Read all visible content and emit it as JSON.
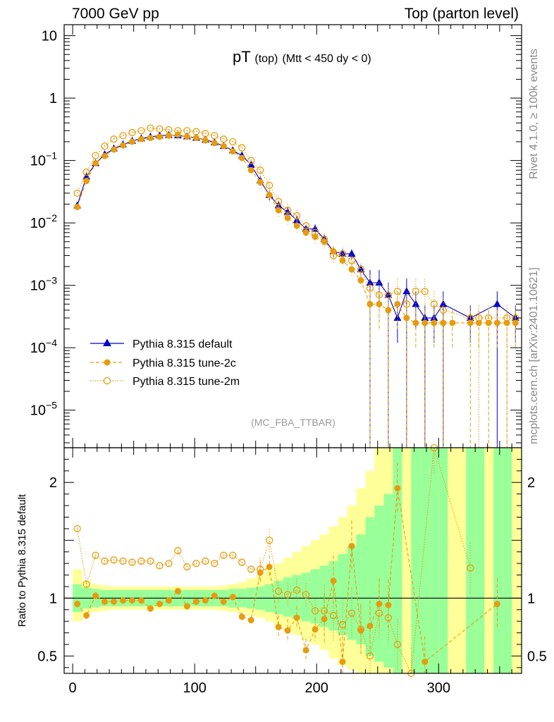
{
  "header": {
    "left": "7000 GeV pp",
    "right": "Top (parton level)"
  },
  "side": {
    "rivet": "Rivet 4.1.0, ≥ 100k events",
    "mcplots": "mcplots.cern.ch [arXiv:2401.10621]"
  },
  "chart_data": [
    {
      "type": "line",
      "panel": "main",
      "title": "pT",
      "title_sub": "(top)",
      "title_cond": "(Mtt < 450 dy < 0)",
      "watermark": "(MC_FBA_TTBAR)",
      "yscale": "log",
      "ylim": [
        2.5e-06,
        15
      ],
      "xlim": [
        -7,
        368
      ],
      "y_tick_labels": [
        {
          "value": 10,
          "base": "10",
          "exp": ""
        },
        {
          "value": 1,
          "base": "1",
          "exp": ""
        },
        {
          "value": 0.1,
          "base": "10",
          "exp": "−1"
        },
        {
          "value": 0.01,
          "base": "10",
          "exp": "−2"
        },
        {
          "value": 0.001,
          "base": "10",
          "exp": "−3"
        },
        {
          "value": 0.0001,
          "base": "10",
          "exp": "−4"
        },
        {
          "value": 1e-05,
          "base": "10",
          "exp": "−5"
        }
      ],
      "legend": [
        {
          "label": "Pythia 8.315 default",
          "color": "#0000cc",
          "marker": "triangle",
          "style": "solid"
        },
        {
          "label": "Pythia 8.315 tune-2c",
          "color": "#e69c0e",
          "marker": "dot",
          "style": "dashed"
        },
        {
          "label": "Pythia 8.315 tune-2m",
          "color": "#e69c0e",
          "marker": "circle-open",
          "style": "dotted"
        }
      ],
      "series": [
        {
          "name": "Pythia 8.315 default",
          "x": [
            3.75,
            11.25,
            18.75,
            26.25,
            33.75,
            41.25,
            48.75,
            56.25,
            63.75,
            71.25,
            78.75,
            86.25,
            93.75,
            101.25,
            108.75,
            116.25,
            123.75,
            131.25,
            138.75,
            146.25,
            153.75,
            161.25,
            168.75,
            176.25,
            183.75,
            191.25,
            198.75,
            206.25,
            213.75,
            221.25,
            228.75,
            236.25,
            243.75,
            251.25,
            258.75,
            266.25,
            273.75,
            281.25,
            288.75,
            296.25,
            303.75,
            326,
            348,
            363
          ],
          "y": [
            0.019,
            0.055,
            0.09,
            0.125,
            0.155,
            0.18,
            0.205,
            0.225,
            0.24,
            0.25,
            0.255,
            0.252,
            0.242,
            0.23,
            0.215,
            0.195,
            0.17,
            0.145,
            0.12,
            0.085,
            0.048,
            0.028,
            0.019,
            0.015,
            0.011,
            0.008,
            0.008,
            0.0055,
            0.0035,
            0.0032,
            0.0032,
            0.0018,
            0.0011,
            0.0011,
            0.0007,
            0.0003,
            0.0008,
            0.0005,
            0.0003,
            0.0003,
            0.0005,
            0.0003,
            0.0005,
            0.0003
          ]
        },
        {
          "name": "Pythia 8.315 tune-2c",
          "x": [
            3.75,
            11.25,
            18.75,
            26.25,
            33.75,
            41.25,
            48.75,
            56.25,
            63.75,
            71.25,
            78.75,
            86.25,
            93.75,
            101.25,
            108.75,
            116.25,
            123.75,
            131.25,
            138.75,
            146.25,
            153.75,
            161.25,
            168.75,
            176.25,
            183.75,
            191.25,
            198.75,
            206.25,
            213.75,
            221.25,
            228.75,
            236.25,
            243.75,
            251.25,
            258.75,
            266.25,
            273.75,
            281.25,
            288.75,
            296.25,
            303.75,
            311.25,
            326,
            333,
            341,
            348,
            356,
            363
          ],
          "y": [
            0.018,
            0.047,
            0.09,
            0.118,
            0.15,
            0.175,
            0.2,
            0.22,
            0.23,
            0.24,
            0.25,
            0.26,
            0.24,
            0.23,
            0.21,
            0.19,
            0.17,
            0.14,
            0.11,
            0.07,
            0.045,
            0.028,
            0.016,
            0.012,
            0.009,
            0.007,
            0.006,
            0.005,
            0.0035,
            0.0025,
            0.0018,
            0.0012,
            0.0005,
            0.0005,
            0.0004,
            0.0005,
            0.0003,
            0.00025,
            0.00025,
            0.00025,
            0.00025,
            0.00025,
            0.00025,
            0.00025,
            0.00025,
            0.00025,
            0.00025,
            0.00025
          ]
        },
        {
          "name": "Pythia 8.315 tune-2m",
          "x": [
            3.75,
            11.25,
            18.75,
            26.25,
            33.75,
            41.25,
            48.75,
            56.25,
            63.75,
            71.25,
            78.75,
            86.25,
            93.75,
            101.25,
            108.75,
            116.25,
            123.75,
            131.25,
            138.75,
            146.25,
            153.75,
            161.25,
            168.75,
            176.25,
            183.75,
            191.25,
            198.75,
            206.25,
            213.75,
            221.25,
            228.75,
            236.25,
            243.75,
            251.25,
            258.75,
            266.25,
            273.75,
            281.25,
            288.75,
            296.25,
            303.75,
            326,
            333,
            341,
            356,
            363
          ],
          "y": [
            0.03,
            0.065,
            0.12,
            0.17,
            0.22,
            0.25,
            0.28,
            0.3,
            0.33,
            0.32,
            0.31,
            0.3,
            0.3,
            0.29,
            0.27,
            0.25,
            0.22,
            0.2,
            0.16,
            0.1,
            0.07,
            0.04,
            0.022,
            0.016,
            0.013,
            0.009,
            0.007,
            0.0055,
            0.003,
            0.0032,
            0.0025,
            0.0018,
            0.0009,
            0.0007,
            0.0007,
            0.0008,
            0.0005,
            0.0008,
            0.0008,
            0.0005,
            0.0004,
            0.0003,
            0.0003,
            0.0003,
            0.0003,
            0.0003
          ]
        }
      ]
    },
    {
      "type": "line",
      "panel": "ratio",
      "ylabel": "Ratio to Pythia 8.315 default",
      "ylim": [
        0.35,
        2.3
      ],
      "xlim": [
        -7,
        368
      ],
      "x_ticks": [
        0,
        100,
        200,
        300
      ],
      "y_ticks": [
        0.5,
        1,
        2
      ],
      "bands": {
        "x_edges": [
          0,
          7.5,
          15,
          22.5,
          30,
          37.5,
          45,
          52.5,
          60,
          67.5,
          75,
          82.5,
          90,
          97.5,
          105,
          112.5,
          120,
          127.5,
          135,
          142.5,
          150,
          157.5,
          165,
          172.5,
          180,
          187.5,
          195,
          202.5,
          210,
          217.5,
          225,
          232.5,
          240,
          247.5,
          255,
          262.5,
          270,
          277.5,
          285,
          292.5,
          300,
          307.5,
          315,
          322.5,
          330,
          337.5,
          345,
          352.5,
          360,
          367.5
        ],
        "green_lo": [
          0.88,
          0.91,
          0.92,
          0.93,
          0.93,
          0.93,
          0.93,
          0.93,
          0.93,
          0.93,
          0.93,
          0.93,
          0.93,
          0.93,
          0.93,
          0.93,
          0.93,
          0.92,
          0.92,
          0.91,
          0.9,
          0.88,
          0.86,
          0.84,
          0.82,
          0.8,
          0.78,
          0.75,
          0.72,
          0.68,
          0.64,
          0.6,
          0.5,
          0.45,
          0.4,
          0.35,
          null,
          0.35,
          0.35,
          0.35,
          0.35,
          null,
          null,
          0.35,
          0.35,
          null,
          0.35,
          0.35,
          null,
          0.35
        ],
        "green_hi": [
          1.12,
          1.09,
          1.08,
          1.07,
          1.07,
          1.07,
          1.07,
          1.07,
          1.07,
          1.07,
          1.07,
          1.07,
          1.07,
          1.07,
          1.07,
          1.07,
          1.07,
          1.08,
          1.08,
          1.09,
          1.1,
          1.12,
          1.15,
          1.18,
          1.2,
          1.22,
          1.25,
          1.28,
          1.32,
          1.38,
          1.45,
          1.55,
          1.7,
          1.8,
          1.9,
          2.3,
          null,
          2.3,
          2.3,
          2.3,
          2.3,
          null,
          null,
          2.3,
          2.3,
          null,
          2.3,
          2.3,
          null,
          2.3
        ],
        "yellow_lo": [
          0.8,
          0.86,
          0.88,
          0.89,
          0.9,
          0.9,
          0.9,
          0.9,
          0.9,
          0.9,
          0.9,
          0.9,
          0.9,
          0.9,
          0.9,
          0.9,
          0.89,
          0.88,
          0.87,
          0.85,
          0.83,
          0.8,
          0.76,
          0.72,
          0.68,
          0.64,
          0.6,
          0.55,
          0.48,
          0.42,
          0.38,
          0.35,
          0.35,
          0.35,
          0.35,
          0.35,
          0.35,
          0.35,
          0.35,
          0.35,
          0.35,
          0.35,
          0.35,
          0.35,
          0.35,
          0.35,
          0.35,
          0.35,
          0.35,
          0.35
        ],
        "yellow_hi": [
          1.25,
          1.15,
          1.12,
          1.11,
          1.1,
          1.1,
          1.1,
          1.1,
          1.1,
          1.1,
          1.1,
          1.1,
          1.1,
          1.1,
          1.1,
          1.1,
          1.11,
          1.12,
          1.14,
          1.17,
          1.2,
          1.25,
          1.3,
          1.35,
          1.4,
          1.45,
          1.5,
          1.55,
          1.62,
          1.7,
          1.8,
          1.95,
          2.1,
          2.3,
          2.3,
          2.3,
          2.3,
          2.3,
          2.3,
          2.3,
          2.3,
          2.3,
          2.3,
          2.3,
          2.3,
          2.3,
          2.3,
          2.3,
          2.3,
          2.3
        ]
      },
      "series": [
        {
          "name": "Pythia 8.315 tune-2c",
          "x": [
            3.75,
            11.25,
            18.75,
            26.25,
            33.75,
            41.25,
            48.75,
            56.25,
            63.75,
            71.25,
            78.75,
            86.25,
            93.75,
            101.25,
            108.75,
            116.25,
            123.75,
            131.25,
            138.75,
            146.25,
            153.75,
            161.25,
            168.75,
            176.25,
            183.75,
            191.25,
            198.75,
            206.25,
            213.75,
            221.25,
            228.75,
            236.25,
            243.75,
            251.25,
            258.75,
            266.25,
            288.75,
            348
          ],
          "y": [
            0.95,
            0.85,
            1.02,
            0.97,
            0.97,
            0.98,
            0.98,
            0.98,
            0.91,
            0.95,
            0.98,
            1.06,
            0.93,
            0.97,
            0.98,
            1.02,
            0.97,
            1.01,
            0.84,
            0.81,
            1.22,
            1.27,
            0.75,
            0.72,
            0.83,
            0.55,
            0.73,
            0.82,
            1.15,
            0.45,
            1.45,
            0.72,
            0.76,
            0.95,
            0.94,
            1.95,
            0.45,
            0.95
          ]
        },
        {
          "name": "Pythia 8.315 tune-2m",
          "x": [
            3.75,
            11.25,
            18.75,
            26.25,
            33.75,
            41.25,
            48.75,
            56.25,
            63.75,
            71.25,
            78.75,
            86.25,
            93.75,
            101.25,
            108.75,
            116.25,
            123.75,
            131.25,
            138.75,
            146.25,
            153.75,
            161.25,
            168.75,
            176.25,
            183.75,
            191.25,
            198.75,
            206.25,
            213.75,
            221.25,
            228.75,
            236.25,
            243.75,
            251.25,
            258.75,
            266.25,
            277.5,
            296.25,
            326
          ],
          "y": [
            1.6,
            1.12,
            1.37,
            1.32,
            1.33,
            1.32,
            1.31,
            1.32,
            1.32,
            1.28,
            1.3,
            1.41,
            1.27,
            1.3,
            1.32,
            1.3,
            1.37,
            1.37,
            1.31,
            1.25,
            1.25,
            1.5,
            1.06,
            1.03,
            1.07,
            1.03,
            0.89,
            0.89,
            0.85,
            0.77,
            0.87,
            0.73,
            0.5,
            0.87,
            0.83,
            0.6,
            0.35,
            2.3,
            1.26
          ]
        }
      ]
    }
  ]
}
